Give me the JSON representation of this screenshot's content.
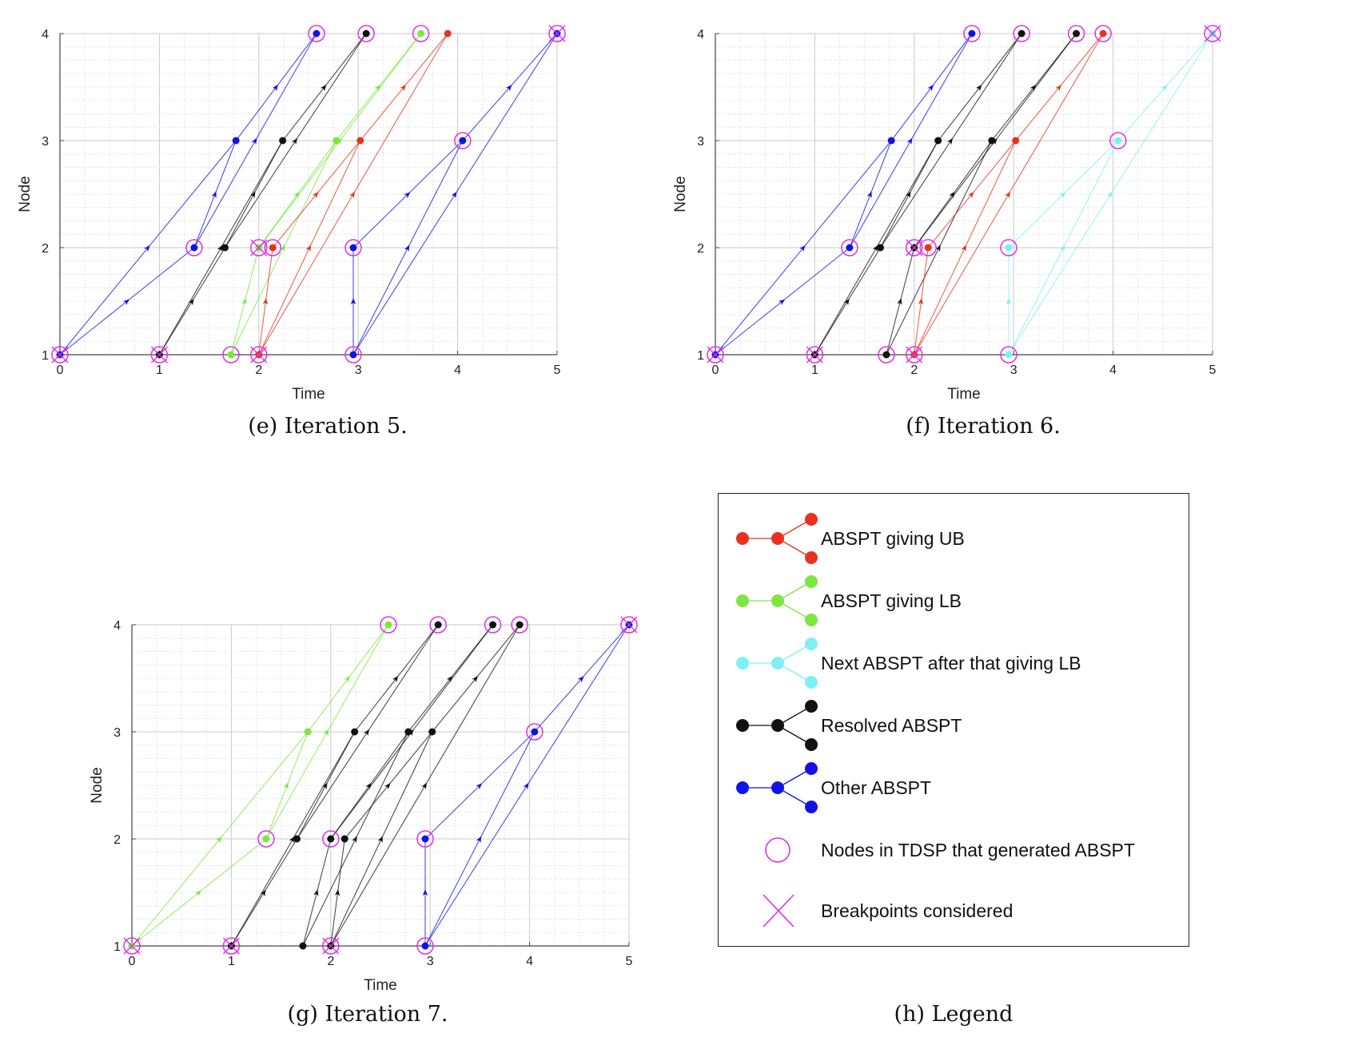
{
  "chart_data": [
    {
      "type": "line",
      "title": "",
      "xlabel": "Time",
      "ylabel": "Node",
      "xlim": [
        0,
        5
      ],
      "ylim": [
        1,
        4
      ],
      "xticks": [
        "0",
        "1",
        "2",
        "3",
        "4",
        "5"
      ],
      "yticks": [
        "1",
        "2",
        "3",
        "4"
      ],
      "grid": "on",
      "caption": "(e) Iteration 5.",
      "series": [
        {
          "color": "blue",
          "paths": [
            [
              [
                0,
                1
              ],
              [
                1.35,
                2
              ],
              [
                2.58,
                4
              ]
            ],
            [
              [
                0,
                1
              ],
              [
                1.77,
                3
              ],
              [
                2.58,
                4
              ]
            ],
            [
              [
                1.35,
                2
              ],
              [
                1.77,
                3
              ]
            ],
            [
              [
                2.95,
                1
              ],
              [
                2.95,
                2
              ],
              [
                4.05,
                3
              ],
              [
                5,
                4
              ]
            ],
            [
              [
                2.95,
                1
              ],
              [
                4.05,
                3
              ]
            ],
            [
              [
                2.95,
                1
              ],
              [
                5,
                4
              ]
            ]
          ]
        },
        {
          "color": "black",
          "paths": [
            [
              [
                1,
                1
              ],
              [
                1.66,
                2
              ],
              [
                3.08,
                4
              ]
            ],
            [
              [
                1,
                1
              ],
              [
                2.24,
                3
              ],
              [
                3.08,
                4
              ]
            ],
            [
              [
                1.66,
                2
              ],
              [
                2.24,
                3
              ]
            ]
          ]
        },
        {
          "color": "green",
          "paths": [
            [
              [
                1.72,
                1
              ],
              [
                2,
                2
              ],
              [
                3.63,
                4
              ]
            ],
            [
              [
                1.72,
                1
              ],
              [
                2.78,
                3
              ],
              [
                3.63,
                4
              ]
            ],
            [
              [
                2,
                2
              ],
              [
                2.78,
                3
              ]
            ]
          ]
        },
        {
          "color": "red",
          "paths": [
            [
              [
                2,
                1
              ],
              [
                2.14,
                2
              ],
              [
                3.02,
                3
              ],
              [
                3.9,
                4
              ]
            ],
            [
              [
                2,
                1
              ],
              [
                3.02,
                3
              ]
            ],
            [
              [
                2,
                1
              ],
              [
                3.9,
                4
              ]
            ]
          ]
        }
      ],
      "circled_points": [
        [
          0,
          1
        ],
        [
          1,
          1
        ],
        [
          1.72,
          1
        ],
        [
          2,
          1
        ],
        [
          2.95,
          1
        ],
        [
          1.35,
          2
        ],
        [
          2,
          2
        ],
        [
          2.14,
          2
        ],
        [
          2.95,
          2
        ],
        [
          4.05,
          3
        ],
        [
          2.58,
          4
        ],
        [
          3.08,
          4
        ],
        [
          3.63,
          4
        ],
        [
          5,
          4
        ]
      ],
      "breakpoints": [
        [
          0,
          1
        ],
        [
          1,
          1
        ],
        [
          2,
          1
        ],
        [
          2,
          2
        ],
        [
          5,
          4
        ]
      ]
    },
    {
      "type": "line",
      "title": "",
      "xlabel": "Time",
      "ylabel": "Node",
      "xlim": [
        0,
        5
      ],
      "ylim": [
        1,
        4
      ],
      "xticks": [
        "0",
        "1",
        "2",
        "3",
        "4",
        "5"
      ],
      "yticks": [
        "1",
        "2",
        "3",
        "4"
      ],
      "grid": "on",
      "caption": "(f) Iteration 6.",
      "series": [
        {
          "color": "blue",
          "paths": [
            [
              [
                0,
                1
              ],
              [
                1.35,
                2
              ],
              [
                2.58,
                4
              ]
            ],
            [
              [
                0,
                1
              ],
              [
                1.77,
                3
              ],
              [
                2.58,
                4
              ]
            ],
            [
              [
                1.35,
                2
              ],
              [
                1.77,
                3
              ]
            ]
          ]
        },
        {
          "color": "black",
          "paths": [
            [
              [
                1,
                1
              ],
              [
                1.66,
                2
              ],
              [
                3.08,
                4
              ]
            ],
            [
              [
                1,
                1
              ],
              [
                2.24,
                3
              ],
              [
                3.08,
                4
              ]
            ],
            [
              [
                1.66,
                2
              ],
              [
                2.24,
                3
              ]
            ],
            [
              [
                1.72,
                1
              ],
              [
                2,
                2
              ],
              [
                3.63,
                4
              ]
            ],
            [
              [
                1.72,
                1
              ],
              [
                2.78,
                3
              ],
              [
                3.63,
                4
              ]
            ],
            [
              [
                2,
                2
              ],
              [
                2.78,
                3
              ]
            ]
          ]
        },
        {
          "color": "red",
          "paths": [
            [
              [
                2,
                1
              ],
              [
                2.14,
                2
              ],
              [
                3.02,
                3
              ],
              [
                3.9,
                4
              ]
            ],
            [
              [
                2,
                1
              ],
              [
                3.02,
                3
              ]
            ],
            [
              [
                2,
                1
              ],
              [
                3.9,
                4
              ]
            ]
          ]
        },
        {
          "color": "cyan",
          "paths": [
            [
              [
                2.95,
                1
              ],
              [
                2.95,
                2
              ],
              [
                4.05,
                3
              ],
              [
                5,
                4
              ]
            ],
            [
              [
                2.95,
                1
              ],
              [
                4.05,
                3
              ]
            ],
            [
              [
                2.95,
                1
              ],
              [
                5,
                4
              ]
            ]
          ]
        }
      ],
      "circled_points": [
        [
          0,
          1
        ],
        [
          1,
          1
        ],
        [
          1.72,
          1
        ],
        [
          2,
          1
        ],
        [
          2.95,
          1
        ],
        [
          1.35,
          2
        ],
        [
          2,
          2
        ],
        [
          2.14,
          2
        ],
        [
          2.95,
          2
        ],
        [
          4.05,
          3
        ],
        [
          2.58,
          4
        ],
        [
          3.08,
          4
        ],
        [
          3.63,
          4
        ],
        [
          3.9,
          4
        ],
        [
          5,
          4
        ]
      ],
      "breakpoints": [
        [
          0,
          1
        ],
        [
          1,
          1
        ],
        [
          2,
          1
        ],
        [
          2,
          2
        ],
        [
          5,
          4
        ]
      ]
    },
    {
      "type": "line",
      "title": "",
      "xlabel": "Time",
      "ylabel": "Node",
      "xlim": [
        0,
        5
      ],
      "ylim": [
        1,
        4
      ],
      "xticks": [
        "0",
        "1",
        "2",
        "3",
        "4",
        "5"
      ],
      "yticks": [
        "1",
        "2",
        "3",
        "4"
      ],
      "grid": "on",
      "caption": "(g) Iteration 7.",
      "series": [
        {
          "color": "green",
          "paths": [
            [
              [
                0,
                1
              ],
              [
                1.35,
                2
              ],
              [
                2.58,
                4
              ]
            ],
            [
              [
                0,
                1
              ],
              [
                1.77,
                3
              ],
              [
                2.58,
                4
              ]
            ],
            [
              [
                1.35,
                2
              ],
              [
                1.77,
                3
              ]
            ]
          ]
        },
        {
          "color": "black",
          "paths": [
            [
              [
                1,
                1
              ],
              [
                1.66,
                2
              ],
              [
                3.08,
                4
              ]
            ],
            [
              [
                1,
                1
              ],
              [
                2.24,
                3
              ],
              [
                3.08,
                4
              ]
            ],
            [
              [
                1.66,
                2
              ],
              [
                2.24,
                3
              ]
            ],
            [
              [
                1.72,
                1
              ],
              [
                2,
                2
              ],
              [
                3.63,
                4
              ]
            ],
            [
              [
                1.72,
                1
              ],
              [
                2.78,
                3
              ],
              [
                3.63,
                4
              ]
            ],
            [
              [
                2,
                2
              ],
              [
                2.78,
                3
              ]
            ],
            [
              [
                2,
                1
              ],
              [
                2.14,
                2
              ],
              [
                3.02,
                3
              ],
              [
                3.9,
                4
              ]
            ],
            [
              [
                2,
                1
              ],
              [
                3.02,
                3
              ]
            ],
            [
              [
                2,
                1
              ],
              [
                3.9,
                4
              ]
            ]
          ]
        },
        {
          "color": "blue",
          "paths": [
            [
              [
                2.95,
                1
              ],
              [
                2.95,
                2
              ],
              [
                4.05,
                3
              ],
              [
                5,
                4
              ]
            ],
            [
              [
                2.95,
                1
              ],
              [
                4.05,
                3
              ]
            ],
            [
              [
                2.95,
                1
              ],
              [
                5,
                4
              ]
            ]
          ]
        }
      ],
      "circled_points": [
        [
          0,
          1
        ],
        [
          1,
          1
        ],
        [
          2,
          1
        ],
        [
          2.95,
          1
        ],
        [
          1.35,
          2
        ],
        [
          2,
          2
        ],
        [
          2.95,
          2
        ],
        [
          4.05,
          3
        ],
        [
          2.58,
          4
        ],
        [
          3.08,
          4
        ],
        [
          3.63,
          4
        ],
        [
          3.9,
          4
        ],
        [
          5,
          4
        ]
      ],
      "breakpoints": [
        [
          0,
          1
        ],
        [
          1,
          1
        ],
        [
          2,
          1
        ],
        [
          5,
          4
        ]
      ]
    }
  ],
  "legend": {
    "caption": "(h) Legend",
    "items": [
      {
        "label": "ABSPT giving UB",
        "color": "red"
      },
      {
        "label": "ABSPT giving LB",
        "color": "green"
      },
      {
        "label": "Next ABSPT after that giving LB",
        "color": "cyan"
      },
      {
        "label": "Resolved ABSPT",
        "color": "black"
      },
      {
        "label": "Other ABSPT",
        "color": "blue"
      },
      {
        "label": "Nodes in TDSP that generated ABSPT",
        "marker": "magenta-circle"
      },
      {
        "label": "Breakpoints considered",
        "marker": "magenta-cross"
      }
    ]
  },
  "colors": {
    "red": "#e8321f",
    "green": "#7de640",
    "cyan": "#7ef0f4",
    "black": "#111111",
    "blue": "#1212e8",
    "magenta": "#e030e6",
    "grid_major": "#c9c9c9",
    "grid_minor": "#e4e4e4"
  }
}
